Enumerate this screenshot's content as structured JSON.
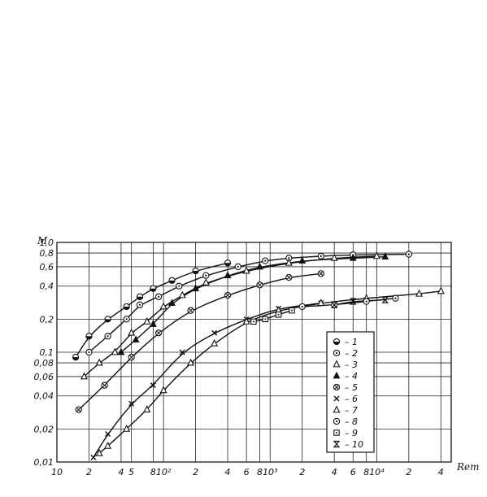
{
  "chart_data": {
    "type": "scatter",
    "xscale": "log",
    "yscale": "log",
    "xlim": [
      10,
      50000
    ],
    "ylim": [
      0.01,
      1.0
    ],
    "ylabel": "M",
    "xlabel": "Reт",
    "grid": true,
    "legend_position": "right",
    "x_tick_labels": [
      {
        "x": 10,
        "label": "10"
      },
      {
        "x": 20,
        "label": "2"
      },
      {
        "x": 40,
        "label": "4"
      },
      {
        "x": 50,
        "label": "5"
      },
      {
        "x": 80,
        "label": "8"
      },
      {
        "x": 100,
        "label": "10²"
      },
      {
        "x": 200,
        "label": "2"
      },
      {
        "x": 400,
        "label": "4"
      },
      {
        "x": 600,
        "label": "6"
      },
      {
        "x": 800,
        "label": "8"
      },
      {
        "x": 1000,
        "label": "10³"
      },
      {
        "x": 2000,
        "label": "2"
      },
      {
        "x": 4000,
        "label": "4"
      },
      {
        "x": 6000,
        "label": "6"
      },
      {
        "x": 8000,
        "label": "8"
      },
      {
        "x": 10000,
        "label": "10⁴"
      },
      {
        "x": 20000,
        "label": "2"
      },
      {
        "x": 40000,
        "label": "4"
      }
    ],
    "y_tick_labels": [
      {
        "y": 1.0,
        "label": "1,0"
      },
      {
        "y": 0.8,
        "label": "0,8"
      },
      {
        "y": 0.6,
        "label": "0,6"
      },
      {
        "y": 0.4,
        "label": "0,4"
      },
      {
        "y": 0.2,
        "label": "0,2"
      },
      {
        "y": 0.1,
        "label": "0,1"
      },
      {
        "y": 0.08,
        "label": "0,08"
      },
      {
        "y": 0.06,
        "label": "0,06"
      },
      {
        "y": 0.04,
        "label": "0,04"
      },
      {
        "y": 0.02,
        "label": "0,02"
      },
      {
        "y": 0.01,
        "label": "0,01"
      }
    ],
    "series": [
      {
        "name": "1",
        "marker": "half-filled-circle",
        "x": [
          15,
          20,
          30,
          45,
          60,
          80,
          120,
          200,
          400
        ],
        "y": [
          0.09,
          0.14,
          0.2,
          0.26,
          0.32,
          0.38,
          0.45,
          0.55,
          0.65
        ]
      },
      {
        "name": "2",
        "marker": "circle-dot",
        "x": [
          20,
          30,
          45,
          60,
          90,
          140,
          250,
          500,
          900,
          1500,
          3000,
          6000,
          20000
        ],
        "y": [
          0.1,
          0.14,
          0.2,
          0.27,
          0.32,
          0.4,
          0.5,
          0.6,
          0.68,
          0.72,
          0.75,
          0.77,
          0.78
        ]
      },
      {
        "name": "3",
        "marker": "open-triangle",
        "x": [
          18,
          25,
          35,
          50,
          70,
          100,
          150,
          250,
          600,
          1500,
          4000,
          10000
        ],
        "y": [
          0.06,
          0.08,
          0.1,
          0.15,
          0.19,
          0.26,
          0.33,
          0.43,
          0.55,
          0.65,
          0.72,
          0.75
        ]
      },
      {
        "name": "4",
        "marker": "filled-triangle",
        "x": [
          40,
          55,
          80,
          120,
          200,
          400,
          800,
          2000,
          6000,
          12000
        ],
        "y": [
          0.1,
          0.13,
          0.18,
          0.28,
          0.38,
          0.5,
          0.6,
          0.68,
          0.72,
          0.74
        ]
      },
      {
        "name": "5",
        "marker": "circle-cross",
        "x": [
          16,
          28,
          50,
          90,
          180,
          400,
          800,
          1500,
          3000
        ],
        "y": [
          0.03,
          0.05,
          0.09,
          0.15,
          0.24,
          0.33,
          0.41,
          0.48,
          0.52
        ]
      },
      {
        "name": "6",
        "marker": "cross",
        "x": [
          22,
          30,
          50,
          80,
          150,
          300,
          600,
          1200,
          3000
        ],
        "y": [
          0.011,
          0.018,
          0.034,
          0.05,
          0.1,
          0.15,
          0.2,
          0.25,
          0.28
        ]
      },
      {
        "name": "7",
        "marker": "open-triangle",
        "x": [
          25,
          30,
          45,
          70,
          100,
          180,
          300,
          600,
          1200,
          3000,
          8000,
          25000,
          40000
        ],
        "y": [
          0.012,
          0.014,
          0.02,
          0.03,
          0.045,
          0.08,
          0.12,
          0.19,
          0.24,
          0.28,
          0.31,
          0.34,
          0.36
        ]
      },
      {
        "name": "8",
        "marker": "circle-dot",
        "x": [
          2000,
          4000,
          8000,
          15000
        ],
        "y": [
          0.26,
          0.27,
          0.29,
          0.31
        ]
      },
      {
        "name": "9",
        "marker": "square-dot",
        "x": [
          700,
          900,
          1200,
          1600
        ],
        "y": [
          0.19,
          0.2,
          0.22,
          0.24
        ]
      },
      {
        "name": "10",
        "marker": "hourglass",
        "x": [
          4000,
          6000,
          12000
        ],
        "y": [
          0.27,
          0.29,
          0.3
        ]
      }
    ]
  }
}
